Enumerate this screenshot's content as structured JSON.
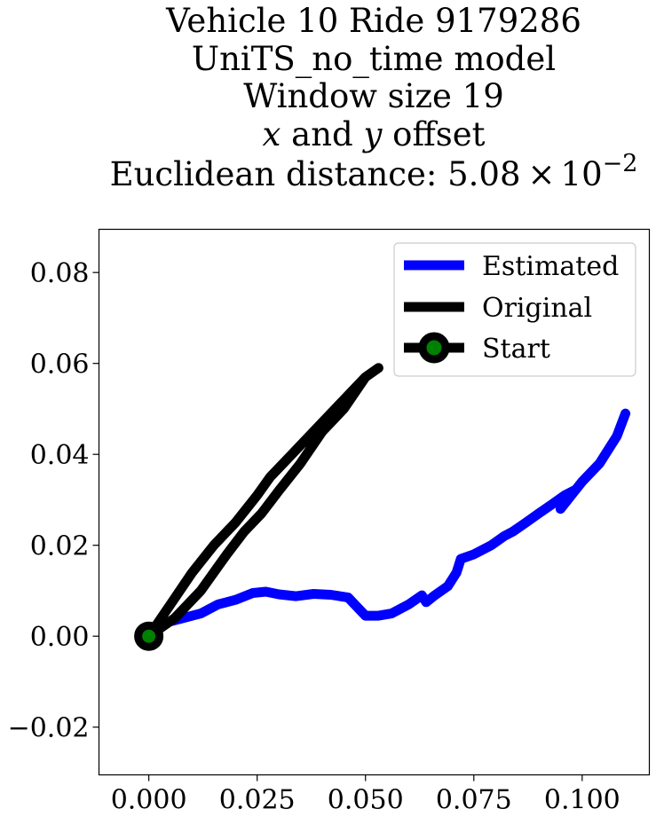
{
  "chart_data": {
    "type": "line",
    "title_lines": [
      "Vehicle 10 Ride 9179286",
      "UniTS_no_time model",
      "Window size 19",
      "x and y offset",
      "Euclidean distance: 5.08 × 10^-2"
    ],
    "title": {
      "line1": "Vehicle 10 Ride 9179286",
      "line2": "UniTS_no_time model",
      "line3": "Window size 19",
      "line4_x": "x",
      "line4_and": " and ",
      "line4_y": "y",
      "line4_rest": " offset",
      "line5_text": "Euclidean distance: 5.08",
      "line5_times": "×",
      "line5_base": "10",
      "line5_exp": "−2"
    },
    "xlabel": "",
    "ylabel": "",
    "xlim": [
      -0.0115,
      0.1155
    ],
    "ylim": [
      -0.0305,
      0.0895
    ],
    "xticks": [
      0.0,
      0.025,
      0.05,
      0.075,
      0.1
    ],
    "xtick_labels": [
      "0.000",
      "0.025",
      "0.050",
      "0.075",
      "0.100"
    ],
    "yticks": [
      -0.02,
      0.0,
      0.02,
      0.04,
      0.06,
      0.08
    ],
    "ytick_labels": [
      "−0.02",
      "0.00",
      "0.02",
      "0.04",
      "0.06",
      "0.08"
    ],
    "grid": false,
    "legend_position": "top-right",
    "legend": [
      "Estimated",
      "Original",
      "Start"
    ],
    "series": [
      {
        "name": "Estimated",
        "color": "#0000ff",
        "x": [
          0.0,
          0.004,
          0.008,
          0.012,
          0.016,
          0.02,
          0.024,
          0.027,
          0.03,
          0.034,
          0.038,
          0.042,
          0.046,
          0.048,
          0.05,
          0.053,
          0.056,
          0.06,
          0.063,
          0.064,
          0.066,
          0.069,
          0.071,
          0.072,
          0.075,
          0.079,
          0.082,
          0.084,
          0.087,
          0.09,
          0.093,
          0.096,
          0.098,
          0.095,
          0.1,
          0.104,
          0.108,
          0.11
        ],
        "y": [
          0.0,
          0.003,
          0.004,
          0.005,
          0.007,
          0.008,
          0.0095,
          0.0098,
          0.0092,
          0.0088,
          0.0093,
          0.0091,
          0.0085,
          0.0065,
          0.0045,
          0.0045,
          0.005,
          0.007,
          0.009,
          0.0075,
          0.009,
          0.011,
          0.014,
          0.017,
          0.018,
          0.02,
          0.022,
          0.023,
          0.025,
          0.027,
          0.029,
          0.031,
          0.032,
          0.028,
          0.034,
          0.038,
          0.044,
          0.049
        ]
      },
      {
        "name": "Original",
        "color": "#000000",
        "x": [
          0.0,
          0.005,
          0.01,
          0.015,
          0.02,
          0.025,
          0.028,
          0.032,
          0.036,
          0.04,
          0.045,
          0.05,
          0.053,
          0.05,
          0.045,
          0.04,
          0.035,
          0.03,
          0.026,
          0.022,
          0.018,
          0.012,
          0.006,
          0.0
        ],
        "y": [
          0.0,
          0.007,
          0.014,
          0.02,
          0.025,
          0.031,
          0.035,
          0.039,
          0.043,
          0.047,
          0.052,
          0.057,
          0.059,
          0.057,
          0.05,
          0.045,
          0.038,
          0.032,
          0.027,
          0.023,
          0.018,
          0.01,
          0.004,
          0.0
        ]
      },
      {
        "name": "Start",
        "color": "#008000",
        "edgecolor": "#000000",
        "x": [
          0.0
        ],
        "y": [
          0.0
        ]
      }
    ]
  }
}
